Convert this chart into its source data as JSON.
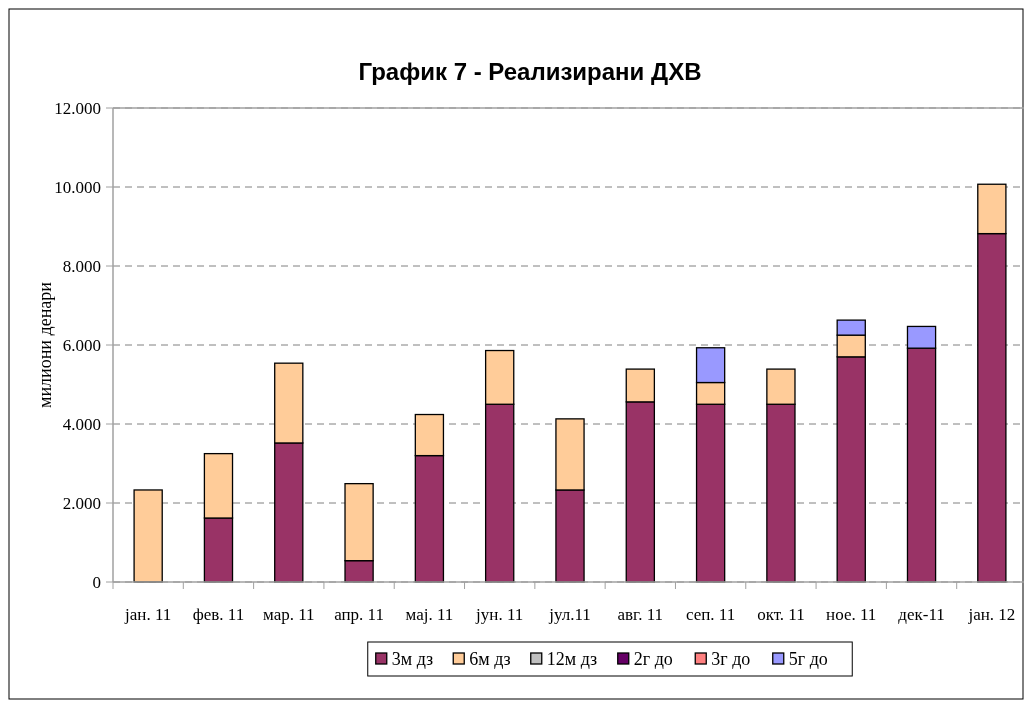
{
  "chart_data": {
    "type": "bar",
    "title": "График 7 - Реализирани ДХВ",
    "ylabel": "милиони денари",
    "categories": [
      "јан. 11",
      "фев. 11",
      "мар. 11",
      "апр. 11",
      "мај. 11",
      "јун. 11",
      "јул.11",
      "авг. 11",
      "сеп. 11",
      "окт. 11",
      "ное. 11",
      "дек-11",
      "јан. 12"
    ],
    "stacked": true,
    "series": [
      {
        "name": "3м дз",
        "color": "#993366",
        "values": [
          0,
          1620,
          3520,
          540,
          3200,
          4500,
          2330,
          4560,
          4500,
          4500,
          5700,
          5920,
          8820
        ]
      },
      {
        "name": "6м дз",
        "color": "#ffcc99",
        "values": [
          2330,
          1630,
          2020,
          1950,
          1040,
          1360,
          1800,
          830,
          550,
          890,
          550,
          0,
          1250
        ]
      },
      {
        "name": "12м дз",
        "color": "#c0c0c0",
        "values": [
          null,
          null,
          null,
          null,
          null,
          null,
          null,
          null,
          null,
          null,
          null,
          null,
          null
        ]
      },
      {
        "name": "2г до",
        "color": "#660066",
        "values": [
          null,
          null,
          null,
          null,
          null,
          null,
          null,
          null,
          null,
          null,
          null,
          null,
          null
        ]
      },
      {
        "name": "3г до",
        "color": "#ff8080",
        "values": [
          null,
          null,
          null,
          null,
          null,
          null,
          null,
          null,
          null,
          null,
          null,
          null,
          null
        ]
      },
      {
        "name": "5г до",
        "color": "#9999ff",
        "values": [
          0,
          0,
          0,
          0,
          0,
          0,
          0,
          0,
          880,
          0,
          380,
          550,
          0
        ]
      }
    ],
    "ylim": [
      0,
      12000
    ],
    "yticks": [
      {
        "value": 0,
        "label": "0"
      },
      {
        "value": 2000,
        "label": "2.000"
      },
      {
        "value": 4000,
        "label": "4.000"
      },
      {
        "value": 6000,
        "label": "6.000"
      },
      {
        "value": 8000,
        "label": "8.000"
      },
      {
        "value": 10000,
        "label": "10.000"
      },
      {
        "value": 12000,
        "label": "12.000"
      }
    ],
    "grid": "y",
    "legend": "bottom"
  }
}
